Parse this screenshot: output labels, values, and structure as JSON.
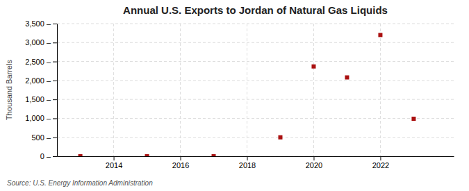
{
  "chart_data": {
    "type": "scatter",
    "title": "Annual U.S. Exports to Jordan of Natural Gas Liquids",
    "ylabel": "Thousand Barrels",
    "source": "Source: U.S. Energy Information Administration",
    "x": [
      2013,
      2015,
      2017,
      2019,
      2020,
      2021,
      2022,
      2023
    ],
    "values": [
      2,
      2,
      2,
      500,
      2370,
      2080,
      3200,
      990
    ],
    "color": "#aa1111",
    "marker": "square",
    "xlim": [
      2012.3,
      2024.2
    ],
    "ylim": [
      0,
      3500
    ],
    "xticks": [
      2014,
      2016,
      2018,
      2020,
      2022
    ],
    "yticks": [
      {
        "value": 0,
        "label": "0 –"
      },
      {
        "value": 500,
        "label": "500 –"
      },
      {
        "value": 1000,
        "label": "1,000 –"
      },
      {
        "value": 1500,
        "label": "1,500 –"
      },
      {
        "value": 2000,
        "label": "2,000 –"
      },
      {
        "value": 2500,
        "label": "2,500 –"
      },
      {
        "value": 3000,
        "label": "3,000 –"
      },
      {
        "value": 3500,
        "label": "3,500 –"
      }
    ],
    "grid": true
  }
}
